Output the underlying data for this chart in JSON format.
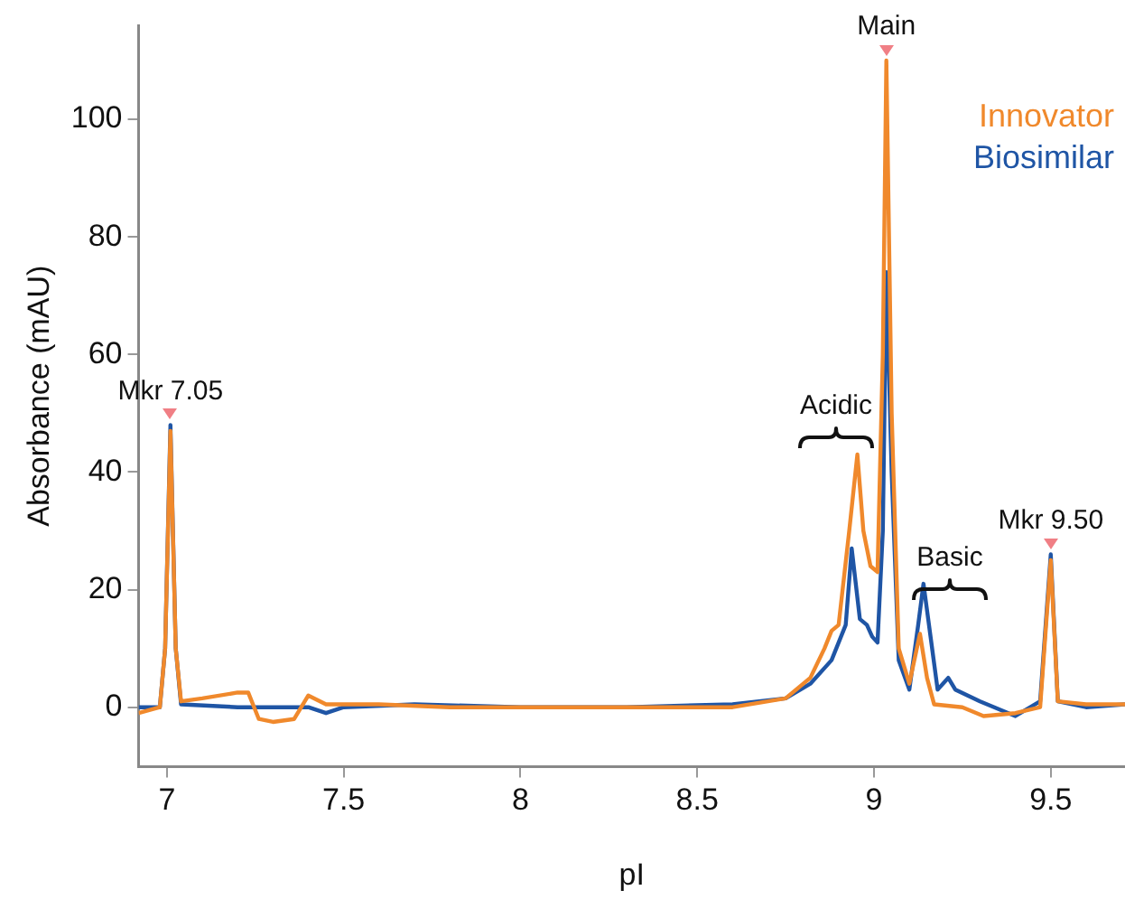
{
  "chart_data": {
    "type": "line",
    "xlabel": "pI",
    "ylabel": "Absorbance (mAU)",
    "xlim": [
      6.92,
      9.71
    ],
    "xticks": [
      7,
      7.5,
      8,
      8.5,
      9,
      9.5
    ],
    "ylim": [
      -10.1,
      116
    ],
    "yticks": [
      0,
      20,
      40,
      60,
      80,
      100
    ],
    "grid": false,
    "legend": "top right",
    "marker": "none",
    "line_style": "solid",
    "series": [
      {
        "name": "Innovator",
        "color": "#f0892c",
        "x": [
          6.92,
          6.98,
          6.995,
          7.01,
          7.025,
          7.04,
          7.1,
          7.2,
          7.23,
          7.26,
          7.3,
          7.36,
          7.4,
          7.45,
          7.6,
          7.8,
          8.1,
          8.4,
          8.6,
          8.75,
          8.82,
          8.86,
          8.88,
          8.9,
          8.93,
          8.953,
          8.97,
          8.99,
          9.01,
          9.025,
          9.035,
          9.05,
          9.07,
          9.1,
          9.13,
          9.15,
          9.17,
          9.25,
          9.31,
          9.4,
          9.47,
          9.5,
          9.52,
          9.6,
          9.71
        ],
        "values": [
          -1,
          0,
          10,
          47,
          10,
          1,
          1.5,
          2.5,
          2.5,
          -2,
          -2.5,
          -2,
          2,
          0.5,
          0.5,
          0,
          0,
          0,
          0,
          1.5,
          5,
          10,
          13,
          14,
          30,
          43,
          30,
          24,
          23,
          60,
          110,
          50,
          10,
          4,
          12.5,
          5,
          0.5,
          0,
          -1.5,
          -1,
          0,
          25,
          1,
          0.5,
          0.5
        ]
      },
      {
        "name": "Biosimilar",
        "color": "#1f55a5",
        "x": [
          6.92,
          6.98,
          6.995,
          7.01,
          7.025,
          7.04,
          7.2,
          7.4,
          7.45,
          7.5,
          7.7,
          8.0,
          8.3,
          8.6,
          8.75,
          8.82,
          8.88,
          8.92,
          8.937,
          8.96,
          8.98,
          8.995,
          9.01,
          9.025,
          9.035,
          9.05,
          9.07,
          9.1,
          9.125,
          9.14,
          9.16,
          9.18,
          9.21,
          9.23,
          9.3,
          9.4,
          9.47,
          9.5,
          9.52,
          9.6,
          9.71
        ],
        "values": [
          0,
          0,
          10,
          48,
          10,
          0.5,
          0,
          0,
          -1,
          0,
          0.5,
          0,
          0,
          0.5,
          1.5,
          4,
          8,
          14,
          27,
          15,
          14,
          12,
          11,
          30,
          74,
          40,
          8,
          3,
          14,
          21,
          12,
          3,
          5,
          3,
          1,
          -1.5,
          1,
          26,
          1,
          0,
          0.5
        ]
      }
    ],
    "annotations": [
      {
        "text": "Mkr 7.05",
        "x": 7.01,
        "y": 48
      },
      {
        "text": "Main",
        "x": 9.035,
        "y": 110
      },
      {
        "text": "Mkr 9.50",
        "x": 9.5,
        "y": 26
      },
      "Acidic",
      "Basic"
    ]
  }
}
